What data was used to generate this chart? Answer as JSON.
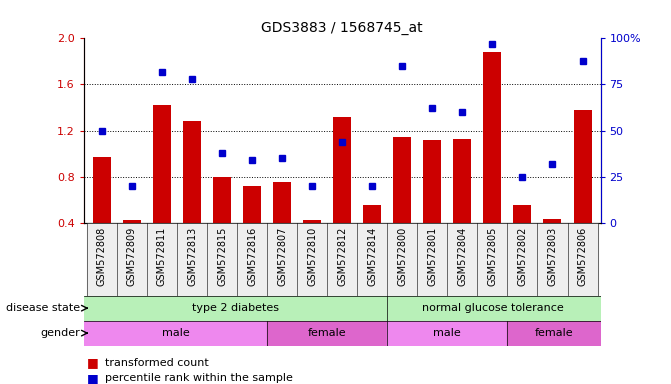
{
  "title": "GDS3883 / 1568745_at",
  "samples": [
    "GSM572808",
    "GSM572809",
    "GSM572811",
    "GSM572813",
    "GSM572815",
    "GSM572816",
    "GSM572807",
    "GSM572810",
    "GSM572812",
    "GSM572814",
    "GSM572800",
    "GSM572801",
    "GSM572804",
    "GSM572805",
    "GSM572802",
    "GSM572803",
    "GSM572806"
  ],
  "bar_values": [
    0.97,
    0.42,
    1.42,
    1.28,
    0.8,
    0.72,
    0.75,
    0.42,
    1.32,
    0.55,
    1.14,
    1.12,
    1.13,
    1.88,
    0.55,
    0.43,
    1.38
  ],
  "dot_values": [
    50,
    20,
    82,
    78,
    38,
    34,
    35,
    20,
    44,
    20,
    85,
    62,
    60,
    97,
    25,
    32,
    88
  ],
  "ymin": 0.4,
  "ymax": 2.0,
  "yticks_left": [
    0.4,
    0.8,
    1.2,
    1.6,
    2.0
  ],
  "yticks_right": [
    0,
    25,
    50,
    75,
    100
  ],
  "bar_color": "#cc0000",
  "dot_color": "#0000cc",
  "left_axis_color": "#cc0000",
  "right_axis_color": "#0000cc",
  "legend_bar_label": "transformed count",
  "legend_dot_label": "percentile rank within the sample",
  "disease_state_label": "disease state",
  "gender_label": "gender",
  "ds_color": "#b8f0b8",
  "gender_male_color": "#ee88ee",
  "gender_female_color": "#dd66cc",
  "background_color": "#ffffff"
}
